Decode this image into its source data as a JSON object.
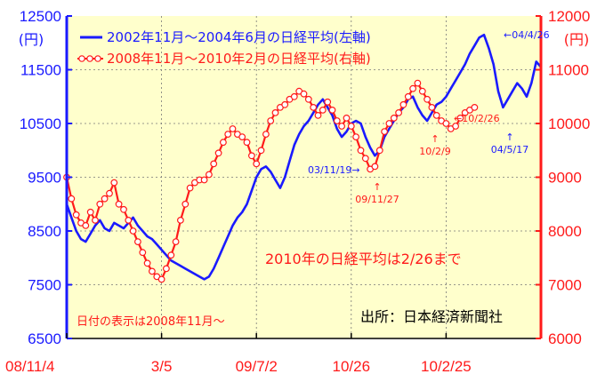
{
  "chart_data": {
    "type": "line",
    "title": "",
    "left_axis": {
      "unit": "(円)",
      "ylim": [
        6500,
        12500
      ],
      "ticks": [
        6500,
        7500,
        8500,
        9500,
        10500,
        11500,
        12500
      ],
      "tick_labels": [
        "6500",
        "7500",
        "8500",
        "9500",
        "10500",
        "11500",
        "12500"
      ]
    },
    "right_axis": {
      "unit": "(円)",
      "ylim": [
        6000,
        12000
      ],
      "ticks": [
        6000,
        7000,
        8000,
        9000,
        10000,
        11000,
        12000
      ],
      "tick_labels": [
        "6000",
        "7000",
        "8000",
        "9000",
        "10000",
        "11000",
        "12000"
      ]
    },
    "x_axis": {
      "labels": [
        "08/11/4",
        "3/5",
        "09/7/2",
        "10/26",
        "10/2/25"
      ],
      "positions": [
        0,
        4,
        8,
        12,
        16
      ],
      "xlim": [
        0,
        20
      ]
    },
    "grid": true,
    "legend_position": "top",
    "series": [
      {
        "name": "2002年11月～2004年6月の日経平均(左軸)",
        "axis": "left",
        "color": "#1a1aff",
        "x": [
          0,
          0.2,
          0.4,
          0.6,
          0.8,
          1.0,
          1.2,
          1.4,
          1.6,
          1.8,
          2.0,
          2.2,
          2.4,
          2.6,
          2.8,
          3.0,
          3.2,
          3.4,
          3.6,
          3.8,
          4.0,
          4.2,
          4.4,
          4.6,
          4.8,
          5.0,
          5.2,
          5.4,
          5.6,
          5.8,
          6.0,
          6.2,
          6.4,
          6.6,
          6.8,
          7.0,
          7.2,
          7.4,
          7.6,
          7.8,
          8.0,
          8.2,
          8.4,
          8.6,
          8.8,
          9.0,
          9.2,
          9.4,
          9.6,
          9.8,
          10.0,
          10.2,
          10.4,
          10.6,
          10.8,
          11.0,
          11.2,
          11.4,
          11.6,
          11.8,
          12.0,
          12.2,
          12.4,
          12.6,
          12.8,
          13.0,
          13.2,
          13.4,
          13.6,
          13.8,
          14.0,
          14.2,
          14.4,
          14.6,
          14.8,
          15.0,
          15.2,
          15.4,
          15.6,
          15.8,
          16.0,
          16.2,
          16.4,
          16.6,
          16.8,
          17.0,
          17.2,
          17.4,
          17.6,
          17.8,
          18.0,
          18.2,
          18.4,
          18.6,
          18.8,
          19.0,
          19.2,
          19.4,
          19.6,
          19.8,
          20.0
        ],
        "values": [
          9000,
          8750,
          8500,
          8350,
          8300,
          8450,
          8600,
          8700,
          8550,
          8500,
          8650,
          8600,
          8550,
          8650,
          8750,
          8600,
          8500,
          8400,
          8350,
          8250,
          8150,
          8050,
          7950,
          7900,
          7850,
          7800,
          7750,
          7700,
          7650,
          7600,
          7650,
          7800,
          8000,
          8200,
          8400,
          8600,
          8750,
          8850,
          9000,
          9250,
          9500,
          9650,
          9700,
          9600,
          9450,
          9300,
          9500,
          9800,
          10100,
          10300,
          10450,
          10550,
          10700,
          10850,
          10950,
          10800,
          10650,
          10400,
          10250,
          10350,
          10500,
          10550,
          10500,
          10250,
          10050,
          9900,
          10000,
          10250,
          10400,
          10550,
          10700,
          10800,
          10950,
          11000,
          10800,
          10650,
          10550,
          10700,
          10850,
          10900,
          11000,
          11150,
          11300,
          11450,
          11600,
          11800,
          11950,
          12100,
          12150,
          11900,
          11600,
          11100,
          10800,
          10950,
          11100,
          11250,
          11150,
          11000,
          11250,
          11650,
          11550
        ]
      },
      {
        "name": "2008年11月～2010年2月の日経平均(右軸)",
        "axis": "right",
        "color": "#ff1a1a",
        "marker": "circle",
        "x": [
          0,
          0.2,
          0.4,
          0.6,
          0.8,
          1.0,
          1.2,
          1.4,
          1.6,
          1.8,
          2.0,
          2.2,
          2.4,
          2.6,
          2.8,
          3.0,
          3.2,
          3.4,
          3.6,
          3.8,
          4.0,
          4.2,
          4.4,
          4.6,
          4.8,
          5.0,
          5.2,
          5.4,
          5.6,
          5.8,
          6.0,
          6.2,
          6.4,
          6.6,
          6.8,
          7.0,
          7.2,
          7.4,
          7.6,
          7.8,
          8.0,
          8.2,
          8.4,
          8.6,
          8.8,
          9.0,
          9.2,
          9.4,
          9.6,
          9.8,
          10.0,
          10.2,
          10.4,
          10.6,
          10.8,
          11.0,
          11.2,
          11.4,
          11.6,
          11.8,
          12.0,
          12.2,
          12.4,
          12.6,
          12.8,
          13.0,
          13.2,
          13.4,
          13.6,
          13.8,
          14.0,
          14.2,
          14.4,
          14.6,
          14.8,
          15.0,
          15.2,
          15.4,
          15.6,
          15.8,
          16.0,
          16.2,
          16.4,
          16.6,
          16.8,
          17.0,
          17.2
        ],
        "values": [
          9000,
          8600,
          8300,
          8150,
          8100,
          8350,
          8200,
          8500,
          8600,
          8700,
          8900,
          8500,
          8400,
          8200,
          8000,
          7800,
          7600,
          7400,
          7250,
          7150,
          7100,
          7300,
          7550,
          7800,
          8200,
          8500,
          8800,
          8900,
          8950,
          8950,
          9050,
          9250,
          9450,
          9650,
          9800,
          9900,
          9800,
          9750,
          9650,
          9400,
          9250,
          9500,
          9800,
          10050,
          10200,
          10300,
          10350,
          10450,
          10500,
          10600,
          10550,
          10450,
          10300,
          10150,
          10250,
          10400,
          10250,
          10050,
          9950,
          10100,
          9950,
          9750,
          9500,
          9350,
          9150,
          9200,
          9500,
          9850,
          10000,
          10100,
          10200,
          10350,
          10500,
          10650,
          10750,
          10600,
          10450,
          10300,
          10150,
          10050,
          10000,
          9900,
          9950,
          10100,
          10200,
          10250,
          10300
        ]
      }
    ],
    "annotations": [
      {
        "text": "←04/4/26",
        "color": "#1a1aff"
      },
      {
        "text": "←10/2/26",
        "color": "#ff1a1a"
      },
      {
        "text": "↑",
        "color": "#ff1a1a"
      },
      {
        "text": "10/2/9",
        "color": "#ff1a1a"
      },
      {
        "text": "↑",
        "color": "#1a1aff"
      },
      {
        "text": "04/5/17",
        "color": "#1a1aff"
      },
      {
        "text": "03/11/19→",
        "color": "#1a1aff"
      },
      {
        "text": "↑",
        "color": "#ff1a1a"
      },
      {
        "text": "09/11/27",
        "color": "#ff1a1a"
      }
    ],
    "notes": {
      "end_note": "2010年の日経平均は2/26まで",
      "date_note": "日付の表示は2008年11月～",
      "source": "出所：日本経済新聞社"
    },
    "colors": {
      "plot_bg": "#ffffcc",
      "grid": "#888888",
      "left_axis": "#1a1aff",
      "right_axis": "#ff1a1a"
    }
  }
}
